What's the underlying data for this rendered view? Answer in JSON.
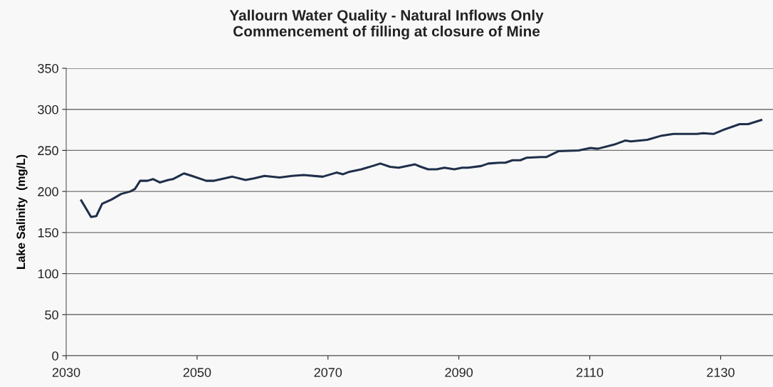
{
  "chart_data": {
    "type": "line",
    "title": "Yallourn Water Quality - Natural Inflows Only\nCommencement of filling at closure of Mine",
    "ylabel": "Lake Salinity  (mg/L)",
    "series": [
      {
        "color": "#1f2f4a",
        "x": [
          2032.3,
          2033.8,
          2034.6,
          2035.5,
          2036.9,
          2038.4,
          2039.8,
          2040.5,
          2041.3,
          2042.4,
          2043.3,
          2044.3,
          2045.6,
          2046.3,
          2048.0,
          2049.2,
          2051.4,
          2052.5,
          2055.4,
          2057.4,
          2058.7,
          2060.3,
          2062.6,
          2064.5,
          2066.3,
          2069.2,
          2071.3,
          2072.3,
          2073.3,
          2075.1,
          2076.8,
          2078.0,
          2079.5,
          2080.8,
          2083.3,
          2084.2,
          2085.3,
          2086.6,
          2087.8,
          2089.3,
          2090.5,
          2091.4,
          2093.4,
          2094.5,
          2096.2,
          2097.1,
          2098.2,
          2099.4,
          2100.3,
          2102.5,
          2103.4,
          2105.2,
          2108.3,
          2110.1,
          2111.2,
          2113.7,
          2115.4,
          2116.3,
          2118.8,
          2121.0,
          2122.8,
          2126.4,
          2127.3,
          2128.9,
          2130.4,
          2132.9,
          2134.2,
          2136.2
        ],
        "values": [
          189,
          169,
          170,
          185,
          190,
          197,
          200,
          203,
          213,
          213,
          215,
          211,
          214,
          215,
          222,
          219,
          213,
          213,
          218,
          214,
          216,
          219,
          217,
          219,
          220,
          218,
          223,
          221,
          224,
          227,
          231,
          234,
          230,
          229,
          233,
          230,
          227,
          227,
          229,
          227,
          229,
          229,
          231,
          234,
          235,
          235,
          238,
          238,
          241,
          242,
          242,
          249,
          250,
          253,
          252,
          257,
          262,
          261,
          263,
          268,
          270,
          270,
          271,
          270,
          275,
          282,
          282,
          287
        ]
      }
    ],
    "xlim": [
      2030,
      2138
    ],
    "xticks": [
      2030,
      2050,
      2070,
      2090,
      2110,
      2130
    ],
    "ylim": [
      0,
      350
    ],
    "yticks": [
      0,
      50,
      100,
      150,
      200,
      250,
      300,
      350
    ],
    "grid": "y",
    "legend": false,
    "marker": "none",
    "line_style": "solid"
  }
}
